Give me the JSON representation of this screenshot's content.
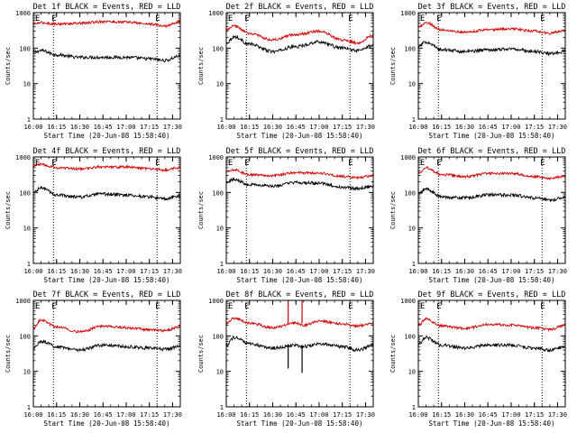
{
  "chart_data": [
    {
      "type": "line",
      "title": "Det 1f BLACK = Events, RED = LLD",
      "xlabel": "Start Time (20-Jun-08 15:58:40)",
      "ylabel": "Counts/sec",
      "yscale": "log",
      "ylim": [
        1,
        1000
      ],
      "xlim": [
        "16:00",
        "17:35"
      ],
      "x_ticks": [
        "16:00",
        "16:15",
        "16:30",
        "16:45",
        "17:00",
        "17:15",
        "17:30"
      ],
      "y_ticks": [
        "1",
        "10",
        "100",
        "1000"
      ],
      "vlines": [
        "16:13",
        "17:20"
      ],
      "markers": [
        "E",
        "E"
      ],
      "series": [
        {
          "color": "#000000",
          "x": [
            "16:00",
            "16:05",
            "16:15",
            "16:30",
            "16:45",
            "17:00",
            "17:15",
            "17:25",
            "17:35"
          ],
          "values": [
            75,
            85,
            65,
            55,
            55,
            55,
            50,
            45,
            60
          ]
        },
        {
          "color": "#d40000",
          "x": [
            "16:00",
            "16:05",
            "16:15",
            "16:30",
            "16:45",
            "17:00",
            "17:15",
            "17:25",
            "17:35"
          ],
          "values": [
            480,
            520,
            480,
            500,
            560,
            540,
            480,
            420,
            560
          ]
        }
      ]
    },
    {
      "type": "line",
      "title": "Det 2f BLACK = Events, RED = LLD",
      "xlabel": "Start Time (20-Jun-08 15:58:40)",
      "ylabel": "Counts/sec",
      "yscale": "log",
      "ylim": [
        1,
        1000
      ],
      "xlim": [
        "16:00",
        "17:35"
      ],
      "x_ticks": [
        "16:00",
        "16:15",
        "16:30",
        "16:45",
        "17:00",
        "17:15",
        "17:30"
      ],
      "y_ticks": [
        "1",
        "10",
        "100",
        "1000"
      ],
      "vlines": [
        "16:13",
        "17:20"
      ],
      "markers": [
        "E",
        "E"
      ],
      "series": [
        {
          "color": "#000000",
          "x": [
            "16:00",
            "16:05",
            "16:15",
            "16:30",
            "16:45",
            "17:00",
            "17:15",
            "17:25",
            "17:35"
          ],
          "values": [
            140,
            210,
            130,
            80,
            110,
            150,
            100,
            85,
            120
          ]
        },
        {
          "color": "#d40000",
          "x": [
            "16:00",
            "16:05",
            "16:15",
            "16:30",
            "16:45",
            "17:00",
            "17:15",
            "17:25",
            "17:35"
          ],
          "values": [
            320,
            420,
            260,
            170,
            240,
            300,
            170,
            140,
            230
          ]
        }
      ]
    },
    {
      "type": "line",
      "title": "Det 3f BLACK = Events, RED = LLD",
      "xlabel": "Start Time (20-Jun-08 15:58:40)",
      "ylabel": "Counts/sec",
      "yscale": "log",
      "ylim": [
        1,
        1000
      ],
      "xlim": [
        "16:00",
        "17:35"
      ],
      "x_ticks": [
        "16:00",
        "16:15",
        "16:30",
        "16:45",
        "17:00",
        "17:15",
        "17:30"
      ],
      "y_ticks": [
        "1",
        "10",
        "100",
        "1000"
      ],
      "vlines": [
        "16:13",
        "17:20"
      ],
      "markers": [
        "E",
        "E"
      ],
      "series": [
        {
          "color": "#000000",
          "x": [
            "16:00",
            "16:05",
            "16:15",
            "16:30",
            "16:45",
            "17:00",
            "17:15",
            "17:25",
            "17:35"
          ],
          "values": [
            110,
            150,
            90,
            80,
            90,
            95,
            80,
            70,
            80
          ]
        },
        {
          "color": "#d40000",
          "x": [
            "16:00",
            "16:05",
            "16:15",
            "16:30",
            "16:45",
            "17:00",
            "17:15",
            "17:25",
            "17:35"
          ],
          "values": [
            400,
            520,
            330,
            280,
            330,
            350,
            300,
            260,
            320
          ]
        }
      ]
    },
    {
      "type": "line",
      "title": "Det 4f BLACK = Events, RED = LLD",
      "xlabel": "Start Time (20-Jun-08 15:58:40)",
      "ylabel": "Counts/sec",
      "yscale": "log",
      "ylim": [
        1,
        1000
      ],
      "xlim": [
        "16:00",
        "17:35"
      ],
      "x_ticks": [
        "16:00",
        "16:15",
        "16:30",
        "16:45",
        "17:00",
        "17:15",
        "17:30"
      ],
      "y_ticks": [
        "1",
        "10",
        "100",
        "1000"
      ],
      "vlines": [
        "16:13",
        "17:20"
      ],
      "markers": [
        "E",
        "E"
      ],
      "series": [
        {
          "color": "#000000",
          "x": [
            "16:00",
            "16:05",
            "16:15",
            "16:30",
            "16:45",
            "17:00",
            "17:15",
            "17:25",
            "17:35"
          ],
          "values": [
            100,
            135,
            85,
            75,
            90,
            85,
            75,
            65,
            80
          ]
        },
        {
          "color": "#d40000",
          "x": [
            "16:00",
            "16:05",
            "16:15",
            "16:30",
            "16:45",
            "17:00",
            "17:15",
            "17:25",
            "17:35"
          ],
          "values": [
            560,
            620,
            500,
            460,
            530,
            520,
            470,
            430,
            500
          ]
        }
      ]
    },
    {
      "type": "line",
      "title": "Det 5f BLACK = Events, RED = LLD",
      "xlabel": "Start Time (20-Jun-08 15:58:40)",
      "ylabel": "Counts/sec",
      "yscale": "log",
      "ylim": [
        1,
        1000
      ],
      "xlim": [
        "16:00",
        "17:35"
      ],
      "x_ticks": [
        "16:00",
        "16:15",
        "16:30",
        "16:45",
        "17:00",
        "17:15",
        "17:30"
      ],
      "y_ticks": [
        "1",
        "10",
        "100",
        "1000"
      ],
      "vlines": [
        "16:13",
        "17:20"
      ],
      "markers": [
        "E",
        "E"
      ],
      "series": [
        {
          "color": "#000000",
          "x": [
            "16:00",
            "16:05",
            "16:15",
            "16:30",
            "16:45",
            "17:00",
            "17:15",
            "17:25",
            "17:35"
          ],
          "values": [
            200,
            230,
            170,
            150,
            190,
            180,
            140,
            130,
            150
          ]
        },
        {
          "color": "#d40000",
          "x": [
            "16:00",
            "16:05",
            "16:15",
            "16:30",
            "16:45",
            "17:00",
            "17:15",
            "17:25",
            "17:35"
          ],
          "values": [
            380,
            430,
            320,
            300,
            360,
            350,
            280,
            260,
            300
          ]
        }
      ]
    },
    {
      "type": "line",
      "title": "Det 6f BLACK = Events, RED = LLD",
      "xlabel": "Start Time (20-Jun-08 15:58:40)",
      "ylabel": "Counts/sec",
      "yscale": "log",
      "ylim": [
        1,
        1000
      ],
      "xlim": [
        "16:00",
        "17:35"
      ],
      "x_ticks": [
        "16:00",
        "16:15",
        "16:30",
        "16:45",
        "17:00",
        "17:15",
        "17:30"
      ],
      "y_ticks": [
        "1",
        "10",
        "100",
        "1000"
      ],
      "vlines": [
        "16:13",
        "17:20"
      ],
      "markers": [
        "E",
        "E"
      ],
      "series": [
        {
          "color": "#000000",
          "x": [
            "16:00",
            "16:05",
            "16:15",
            "16:30",
            "16:45",
            "17:00",
            "17:15",
            "17:25",
            "17:35"
          ],
          "values": [
            90,
            125,
            75,
            70,
            85,
            85,
            70,
            60,
            75
          ]
        },
        {
          "color": "#d40000",
          "x": [
            "16:00",
            "16:05",
            "16:15",
            "16:30",
            "16:45",
            "17:00",
            "17:15",
            "17:25",
            "17:35"
          ],
          "values": [
            360,
            500,
            320,
            280,
            340,
            340,
            280,
            250,
            290
          ]
        }
      ]
    },
    {
      "type": "line",
      "title": "Det 7f BLACK = Events, RED = LLD",
      "xlabel": "Start Time (20-Jun-08 15:58:40)",
      "ylabel": "Counts/sec",
      "yscale": "log",
      "ylim": [
        1,
        1000
      ],
      "xlim": [
        "16:00",
        "17:35"
      ],
      "x_ticks": [
        "16:00",
        "16:15",
        "16:30",
        "16:45",
        "17:00",
        "17:15",
        "17:30"
      ],
      "y_ticks": [
        "1",
        "10",
        "100",
        "1000"
      ],
      "vlines": [
        "16:13",
        "17:20"
      ],
      "markers": [
        "E",
        "E"
      ],
      "series": [
        {
          "color": "#000000",
          "x": [
            "16:00",
            "16:05",
            "16:15",
            "16:30",
            "16:45",
            "17:00",
            "17:15",
            "17:25",
            "17:35"
          ],
          "values": [
            45,
            70,
            50,
            40,
            55,
            50,
            45,
            42,
            50
          ]
        },
        {
          "color": "#d40000",
          "x": [
            "16:00",
            "16:05",
            "16:15",
            "16:30",
            "16:45",
            "17:00",
            "17:15",
            "17:25",
            "17:35"
          ],
          "values": [
            160,
            280,
            180,
            130,
            190,
            170,
            150,
            140,
            180
          ]
        }
      ]
    },
    {
      "type": "line",
      "title": "Det 8f BLACK = Events, RED = LLD",
      "xlabel": "Start Time (20-Jun-08 15:58:40)",
      "ylabel": "Counts/sec",
      "yscale": "log",
      "ylim": [
        1,
        1000
      ],
      "xlim": [
        "16:00",
        "17:35"
      ],
      "x_ticks": [
        "16:00",
        "16:15",
        "16:30",
        "16:45",
        "17:00",
        "17:15",
        "17:30"
      ],
      "y_ticks": [
        "1",
        "10",
        "100",
        "1000"
      ],
      "vlines": [
        "16:13",
        "17:20"
      ],
      "markers": [
        "E",
        "E"
      ],
      "series": [
        {
          "color": "#000000",
          "x": [
            "16:00",
            "16:05",
            "16:15",
            "16:30",
            "16:45",
            "16:50",
            "17:00",
            "17:15",
            "17:25",
            "17:35"
          ],
          "values": [
            55,
            90,
            60,
            45,
            55,
            50,
            60,
            50,
            40,
            55
          ]
        },
        {
          "color": "#d40000",
          "x": [
            "16:00",
            "16:05",
            "16:15",
            "16:30",
            "16:45",
            "16:50",
            "17:00",
            "17:15",
            "17:25",
            "17:35"
          ],
          "values": [
            220,
            320,
            230,
            170,
            230,
            200,
            260,
            220,
            190,
            230
          ]
        }
      ],
      "spikes": [
        {
          "x": "16:40",
          "black": 12,
          "red": 1000
        },
        {
          "x": "16:49",
          "black": 9,
          "red": 1000
        }
      ]
    },
    {
      "type": "line",
      "title": "Det 9f BLACK = Events, RED = LLD",
      "xlabel": "Start Time (20-Jun-08 15:58:40)",
      "ylabel": "Counts/sec",
      "yscale": "log",
      "ylim": [
        1,
        1000
      ],
      "xlim": [
        "16:00",
        "17:35"
      ],
      "x_ticks": [
        "16:00",
        "16:15",
        "16:30",
        "16:45",
        "17:00",
        "17:15",
        "17:30"
      ],
      "y_ticks": [
        "1",
        "10",
        "100",
        "1000"
      ],
      "vlines": [
        "16:13",
        "17:20"
      ],
      "markers": [
        "E",
        "E"
      ],
      "series": [
        {
          "color": "#000000",
          "x": [
            "16:00",
            "16:05",
            "16:15",
            "16:30",
            "16:45",
            "17:00",
            "17:15",
            "17:25",
            "17:35"
          ],
          "values": [
            60,
            90,
            55,
            45,
            55,
            55,
            45,
            40,
            50
          ]
        },
        {
          "color": "#d40000",
          "x": [
            "16:00",
            "16:05",
            "16:15",
            "16:30",
            "16:45",
            "17:00",
            "17:15",
            "17:25",
            "17:35"
          ],
          "values": [
            200,
            300,
            190,
            160,
            210,
            200,
            170,
            150,
            200
          ]
        }
      ]
    }
  ]
}
